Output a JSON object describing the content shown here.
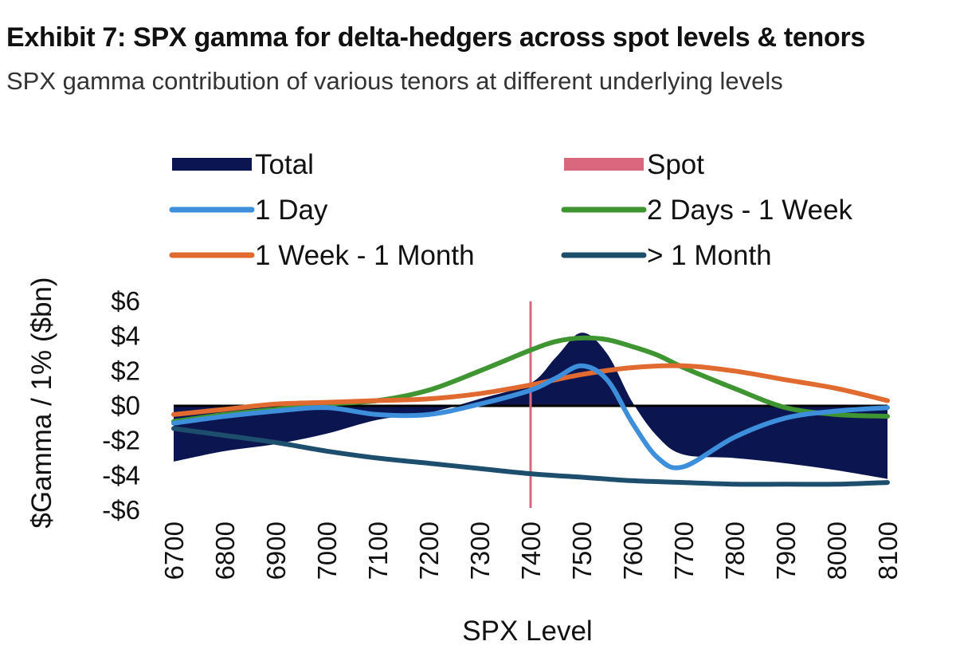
{
  "header": {
    "title": "Exhibit 7: SPX gamma for delta-hedgers across spot levels & tenors",
    "subtitle": "SPX gamma contribution of various tenors at different underlying levels"
  },
  "chart_data": {
    "type": "line",
    "xlabel": "SPX Level",
    "ylabel": "$Gamma / 1% ($bn)",
    "x": [
      6700,
      6800,
      6900,
      7000,
      7100,
      7200,
      7300,
      7400,
      7500,
      7600,
      7700,
      7800,
      7900,
      8000,
      8100
    ],
    "x_tick_labels": [
      "6700",
      "6800",
      "6900",
      "7000",
      "7100",
      "7200",
      "7300",
      "7400",
      "7500",
      "7600",
      "7700",
      "7800",
      "7900",
      "8000",
      "8100"
    ],
    "y_tick_labels": [
      "$6",
      "$4",
      "$2",
      "$0",
      "-$2",
      "-$4",
      "-$6"
    ],
    "y_ticks": [
      6,
      4,
      2,
      0,
      -2,
      -4,
      -6
    ],
    "ylim": [
      -6,
      6
    ],
    "xlim": [
      6700,
      8100
    ],
    "spot": 7400,
    "legend_position": "top",
    "series": [
      {
        "name": "Total",
        "kind": "area",
        "color": "#0b1650",
        "x": [
          6700,
          6800,
          6900,
          7000,
          7100,
          7200,
          7300,
          7400,
          7450,
          7500,
          7550,
          7600,
          7650,
          7700,
          7800,
          7900,
          8000,
          8100
        ],
        "values": [
          -3.2,
          -2.6,
          -2.2,
          -1.6,
          -0.8,
          -0.4,
          0.4,
          1.3,
          2.8,
          4.2,
          3.0,
          0.2,
          -1.8,
          -2.8,
          -3.0,
          -3.3,
          -3.7,
          -4.2
        ]
      },
      {
        "name": "Spot",
        "kind": "vline",
        "color": "#d9687f"
      },
      {
        "name": "1 Day",
        "kind": "line",
        "color": "#3d8fdc",
        "x": [
          6700,
          6800,
          6900,
          7000,
          7100,
          7200,
          7300,
          7400,
          7450,
          7500,
          7550,
          7600,
          7650,
          7700,
          7800,
          7900,
          8000,
          8100
        ],
        "values": [
          -1.0,
          -0.6,
          -0.3,
          -0.1,
          -0.5,
          -0.5,
          0.1,
          0.9,
          1.6,
          2.3,
          1.5,
          -1.0,
          -3.0,
          -3.5,
          -1.8,
          -0.7,
          -0.3,
          -0.1
        ]
      },
      {
        "name": "2 Days - 1 Week",
        "kind": "line",
        "color": "#3f9531",
        "x": [
          6700,
          6800,
          6900,
          7000,
          7100,
          7200,
          7300,
          7400,
          7450,
          7500,
          7550,
          7600,
          7650,
          7700,
          7800,
          7900,
          8000,
          8100
        ],
        "values": [
          -0.9,
          -0.5,
          -0.2,
          0.1,
          0.3,
          0.9,
          2.0,
          3.2,
          3.7,
          3.9,
          3.8,
          3.4,
          2.9,
          2.2,
          1.0,
          -0.1,
          -0.5,
          -0.6
        ]
      },
      {
        "name": "1 Week - 1 Month",
        "kind": "line",
        "color": "#e06a2f",
        "x": [
          6700,
          6800,
          6900,
          7000,
          7100,
          7200,
          7300,
          7400,
          7500,
          7600,
          7700,
          7800,
          7900,
          8000,
          8100
        ],
        "values": [
          -0.5,
          -0.2,
          0.1,
          0.2,
          0.3,
          0.4,
          0.7,
          1.2,
          1.8,
          2.2,
          2.3,
          2.0,
          1.5,
          1.0,
          0.3
        ]
      },
      {
        "name": "> 1 Month",
        "kind": "line",
        "color": "#1e4e6e",
        "x": [
          6700,
          6800,
          6900,
          7000,
          7100,
          7200,
          7300,
          7400,
          7500,
          7600,
          7700,
          7800,
          7900,
          8000,
          8100
        ],
        "values": [
          -1.3,
          -1.7,
          -2.1,
          -2.6,
          -3.0,
          -3.3,
          -3.6,
          -3.9,
          -4.1,
          -4.3,
          -4.4,
          -4.5,
          -4.5,
          -4.5,
          -4.4
        ]
      }
    ]
  }
}
